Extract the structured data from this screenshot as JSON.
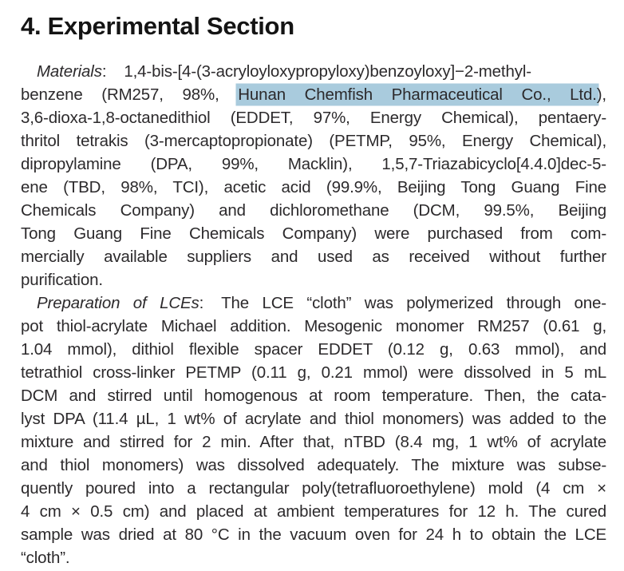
{
  "page": {
    "highlight_color": "#a9cbdd",
    "text_color": "#2c2a2c",
    "background_color": "#ffffff"
  },
  "heading": "4. Experimental Section",
  "paragraphs": [
    {
      "name": "materials",
      "lines": [
        {
          "indent": true,
          "segments": [
            {
              "t": "Materials",
              "style": "italic"
            },
            {
              "t": ":"
            },
            {
              "gap": true
            },
            {
              "t": "1,4-bis-[4-(3-acryloyloxypropyloxy)benzoyloxy]−2-methyl-"
            }
          ]
        },
        {
          "segments": [
            {
              "t": "benzene (RM257, 98%, "
            },
            {
              "t": "Hunan Chemfish Pharmaceutical Co., Ltd.",
              "style": "highlight"
            },
            {
              "t": "),"
            }
          ]
        },
        {
          "segments": [
            {
              "t": "3,6-dioxa-1,8-octanedithiol (EDDET, 97%, Energy Chemical), pentaery-"
            }
          ]
        },
        {
          "segments": [
            {
              "t": "thritol tetrakis (3-mercaptopropionate) (PETMP, 95%, Energy Chemical),"
            }
          ]
        },
        {
          "segments": [
            {
              "t": "dipropylamine (DPA, 99%, Macklin), 1,5,7-Triazabicyclo[4.4.0]dec-5-"
            }
          ]
        },
        {
          "segments": [
            {
              "t": "ene (TBD, 98%, TCI), acetic acid (99.9%, Beijing Tong Guang Fine"
            }
          ]
        },
        {
          "segments": [
            {
              "t": "Chemicals Company) and dichloromethane (DCM, 99.5%, Beijing"
            }
          ]
        },
        {
          "segments": [
            {
              "t": "Tong Guang Fine Chemicals Company) were purchased from com-"
            }
          ]
        },
        {
          "segments": [
            {
              "t": "mercially available suppliers and used as received without further"
            }
          ]
        },
        {
          "last": true,
          "segments": [
            {
              "t": "purification."
            }
          ]
        }
      ]
    },
    {
      "name": "preparation",
      "lines": [
        {
          "indent": true,
          "segments": [
            {
              "t": "Preparation of LCEs",
              "style": "italic"
            },
            {
              "t": ":"
            },
            {
              "gap": true
            },
            {
              "t": "The LCE “cloth” was polymerized through one-"
            }
          ]
        },
        {
          "segments": [
            {
              "t": "pot thiol-acrylate Michael addition. Mesogenic monomer RM257 (0.61 g,"
            }
          ]
        },
        {
          "segments": [
            {
              "t": "1.04 mmol), dithiol flexible spacer EDDET (0.12 g, 0.63 mmol), and"
            }
          ]
        },
        {
          "segments": [
            {
              "t": "tetrathiol cross-linker PETMP (0.11 g, 0.21 mmol) were dissolved in 5 mL"
            }
          ]
        },
        {
          "segments": [
            {
              "t": "DCM and stirred until homogenous at room temperature. Then, the cata-"
            }
          ]
        },
        {
          "segments": [
            {
              "t": "lyst DPA (11.4 µL, 1 wt% of acrylate and thiol monomers) was added to the"
            }
          ]
        },
        {
          "segments": [
            {
              "t": "mixture and stirred for 2 min. After that, nTBD (8.4 mg, 1 wt% of acrylate"
            }
          ]
        },
        {
          "segments": [
            {
              "t": "and thiol monomers) was dissolved adequately. The mixture was subse-"
            }
          ]
        },
        {
          "segments": [
            {
              "t": "quently poured into a rectangular poly(tetrafluoroethylene) mold (4 cm ×"
            }
          ]
        },
        {
          "segments": [
            {
              "t": "4 cm × 0.5 cm) and placed at ambient temperatures for 12 h. The cured"
            }
          ]
        },
        {
          "segments": [
            {
              "t": "sample was dried at 80 °C in the vacuum oven for 24 h to obtain the LCE"
            }
          ]
        },
        {
          "last": true,
          "segments": [
            {
              "t": "“cloth”."
            }
          ]
        }
      ]
    }
  ]
}
